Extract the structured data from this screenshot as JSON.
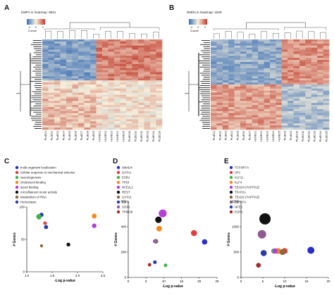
{
  "panels": {
    "A": {
      "letter": "A",
      "caption": "DMPs in heatmap: 9631",
      "scale_label": "Z-score",
      "scale_ticks": [
        "-2",
        "0",
        "2"
      ]
    },
    "B": {
      "letter": "B",
      "caption": "DMRs in heatmap: 1839",
      "scale_label": "Z-score",
      "scale_ticks": [
        "-2",
        "0",
        "2"
      ]
    },
    "C": {
      "letter": "C"
    },
    "D": {
      "letter": "D"
    },
    "E": {
      "letter": "E"
    }
  },
  "heatmap_A": {
    "columns": [
      "PLsEC1",
      "PLsEC2",
      "PLsEC3",
      "PLsEC4",
      "PLsEC5",
      "PLsEC6",
      "PLsEC7",
      "PLsEC8",
      "PLsEC9",
      "HUVEC1",
      "HUVEC2",
      "HUVEC3",
      "HUVEC4",
      "HUVEC5",
      "PLsEC10",
      "PLsEC11",
      "PLsEC12",
      "PLsEC13",
      "PLsEC14",
      "PLsEC15"
    ],
    "colors": {
      "low": "#3b6fb6",
      "mid": "#f7f0dc",
      "high": "#c0392b"
    }
  },
  "heatmap_B": {
    "columns": [
      "PLsEC1",
      "PLsEC2",
      "PLsEC3",
      "PLsEC4",
      "PLsEC5",
      "PLsEC6",
      "PLsEC7",
      "HUVEC1",
      "HUVEC2",
      "HUVEC3",
      "HUVEC4",
      "HUVEC5",
      "PLsEC8",
      "PLsEC9",
      "PLsEC10",
      "PLsEC11",
      "PLsEC12",
      "PLsEC13",
      "PLsEC14",
      "PLsEC15"
    ],
    "colors": {
      "low": "#3b6fb6",
      "mid": "#f7f0dc",
      "high": "#c0392b"
    }
  },
  "chart_data": [
    {
      "panel": "C",
      "type": "scatter",
      "xlabel": "-Log p-value",
      "ylabel": "# Genes",
      "xlim": [
        1.0,
        2.5
      ],
      "ylim": [
        0,
        100
      ],
      "xticks": [
        "1.0",
        "1.5",
        "2.0",
        "2.5"
      ],
      "yticks": [
        "0",
        "50",
        "100"
      ],
      "legend_placement": "top-left",
      "points": [
        {
          "name": "multi-organism localization",
          "color": "#2c2cc9",
          "x": 1.29,
          "y": 88,
          "r": 2.9
        },
        {
          "name": "cellular response to mechanical stimulus",
          "color": "#e43c3c",
          "x": 1.36,
          "y": 75,
          "r": 2.5
        },
        {
          "name": "vasculogenesis",
          "color": "#39b54a",
          "x": 1.24,
          "y": 85,
          "r": 3.8
        },
        {
          "name": "cholesterol binding",
          "color": "#f58a1f",
          "x": 2.33,
          "y": 86,
          "r": 3.5
        },
        {
          "name": "sterol binding",
          "color": "#b640d9",
          "x": 2.33,
          "y": 71,
          "r": 3.2
        },
        {
          "name": "microfilament motor activity",
          "color": "#111111",
          "x": 1.82,
          "y": 42,
          "r": 2.7
        },
        {
          "name": "Metabolism of RNA",
          "color": "#8b6a3e",
          "x": 1.29,
          "y": 40,
          "r": 2.2
        },
        {
          "name": "Hemostasis",
          "color": "#2a3ca8",
          "x": 1.38,
          "y": 69,
          "r": 2.9
        }
      ]
    },
    {
      "panel": "D",
      "type": "scatter",
      "xlabel": "-Log p-value",
      "ylabel": "# Genes",
      "xlim": [
        0,
        25
      ],
      "ylim": [
        0,
        600
      ],
      "xticks": [
        "0",
        "5",
        "10",
        "15",
        "20",
        "25"
      ],
      "yticks": [
        "0",
        "200",
        "400",
        "600"
      ],
      "legend_placement": "top-left",
      "points": [
        {
          "name": "SMAD4",
          "color": "#2c2cc9",
          "x": 21.5,
          "y": 280,
          "r": 3.8
        },
        {
          "name": "GATA1",
          "color": "#e43c3c",
          "x": 18.5,
          "y": 350,
          "r": 4.3
        },
        {
          "name": "ESR1",
          "color": "#39b54a",
          "x": 10.5,
          "y": 95,
          "r": 2.5
        },
        {
          "name": "TP63",
          "color": "#f58a1f",
          "x": 8.7,
          "y": 385,
          "r": 4.0
        },
        {
          "name": "NFE2L2",
          "color": "#b640d9",
          "x": 9.7,
          "y": 505,
          "r": 5.6
        },
        {
          "name": "REST",
          "color": "#111111",
          "x": 8.5,
          "y": 455,
          "r": 4.6
        },
        {
          "name": "GATA2",
          "color": "#8b6a3e",
          "x": 7.8,
          "y": 285,
          "r": 3.3
        },
        {
          "name": "E2F2",
          "color": "#2a3ca8",
          "x": 7.5,
          "y": 120,
          "r": 2.6
        },
        {
          "name": "SOX2",
          "color": "#8e5bb5",
          "x": 7.5,
          "y": 285,
          "r": 2.8
        },
        {
          "name": "TRIM28",
          "color": "#a12a2a",
          "x": 6.0,
          "y": 100,
          "r": 2.4
        }
      ]
    },
    {
      "panel": "E",
      "type": "scatter",
      "xlabel": "-Log p-value",
      "ylabel": "# Genes",
      "xlim": [
        0,
        20
      ],
      "ylim": [
        0,
        1500
      ],
      "xticks": [
        "0",
        "5",
        "10",
        "15",
        "20"
      ],
      "yticks": [
        "0",
        "500",
        "1000",
        "1500"
      ],
      "legend_placement": "top-left",
      "points": [
        {
          "name": "TCF4/P7A",
          "color": "#2c2cc9",
          "x": 16.0,
          "y": 535,
          "r": 5.0
        },
        {
          "name": "SP1",
          "color": "#e43c3c",
          "x": 10.0,
          "y": 520,
          "r": 4.2
        },
        {
          "name": "KLF11",
          "color": "#39b54a",
          "x": 7.5,
          "y": 520,
          "r": 3.6
        },
        {
          "name": "KLF4",
          "color": "#f58a1f",
          "x": 8.5,
          "y": 520,
          "r": 4.2
        },
        {
          "name": "TEAD4 (YAP/TAZ)",
          "color": "#b640d9",
          "x": 7.8,
          "y": 520,
          "r": 3.8
        },
        {
          "name": "TFAP2A",
          "color": "#111111",
          "x": 5.5,
          "y": 1155,
          "r": 8.0
        },
        {
          "name": "TEAD2 (YAP/TAZ)",
          "color": "#8b6a3e",
          "x": 9.5,
          "y": 500,
          "r": 4.2
        },
        {
          "name": "ZBTB7A",
          "color": "#8e5b8e",
          "x": 4.8,
          "y": 850,
          "r": 6.0
        },
        {
          "name": "NFE2",
          "color": "#2a3ca8",
          "x": 5.2,
          "y": 480,
          "r": 4.3
        },
        {
          "name": "EGR1",
          "color": "#a12a2a",
          "x": 4.0,
          "y": 240,
          "r": 3.4
        }
      ]
    }
  ]
}
